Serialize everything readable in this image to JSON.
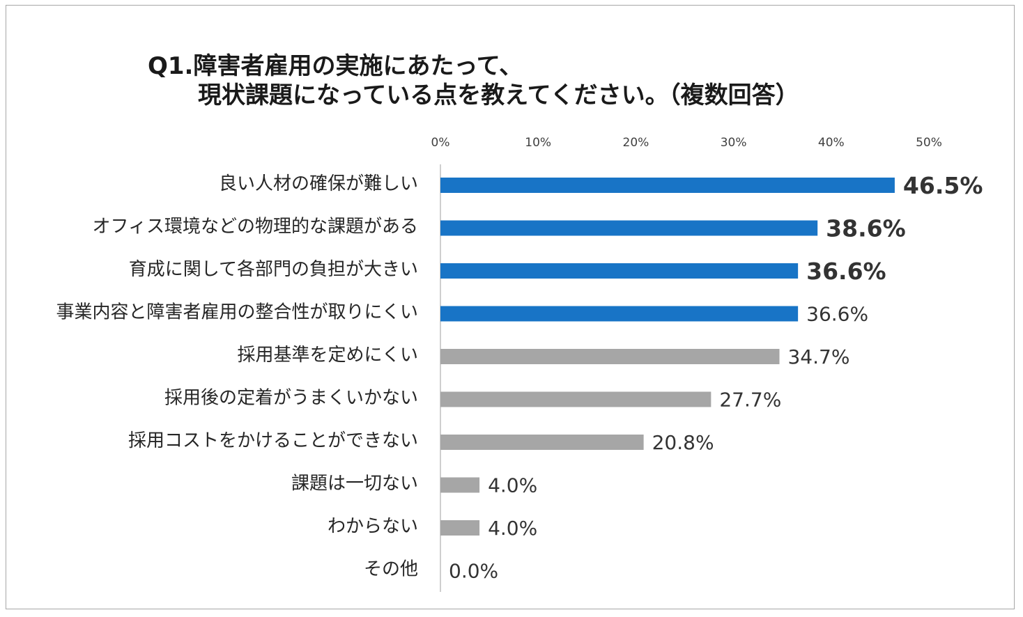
{
  "chart_data": {
    "type": "bar",
    "orientation": "horizontal",
    "title_line1": "Q1.障害者雇用の実施にあたって、",
    "title_line2": "現状課題になっている点を教えてください。（複数回答）",
    "categories": [
      "良い人材の確保が難しい",
      "オフィス環境などの物理的な課題がある",
      "育成に関して各部門の負担が大きい",
      "事業内容と障害者雇用の整合性が取りにくい",
      "採用基準を定めにくい",
      "採用後の定着がうまくいかない",
      "採用コストをかけることができない",
      "課題は一切ない",
      "わからない",
      "その他"
    ],
    "values": [
      46.5,
      38.6,
      36.6,
      36.6,
      34.7,
      27.7,
      20.8,
      4.0,
      4.0,
      0.0
    ],
    "value_labels": [
      "46.5%",
      "38.6%",
      "36.6%",
      "36.6%",
      "34.7%",
      "27.7%",
      "20.8%",
      "4.0%",
      "4.0%",
      "0.0%"
    ],
    "highlight": [
      true,
      true,
      true,
      true,
      false,
      false,
      false,
      false,
      false,
      false
    ],
    "emphasized_labels": [
      true,
      true,
      true,
      false,
      false,
      false,
      false,
      false,
      false,
      false
    ],
    "xlim": [
      0,
      50
    ],
    "xticks": [
      0,
      10,
      20,
      30,
      40,
      50
    ],
    "xtick_labels": [
      "0%",
      "10%",
      "20%",
      "30%",
      "40%",
      "50%"
    ],
    "axis_position": "top",
    "grid": false,
    "legend": "none",
    "colors": {
      "highlight": "#1874C6",
      "normal": "#A6A6A6",
      "axis": "#BFBFBF",
      "frame": "#A6A6A6"
    }
  }
}
